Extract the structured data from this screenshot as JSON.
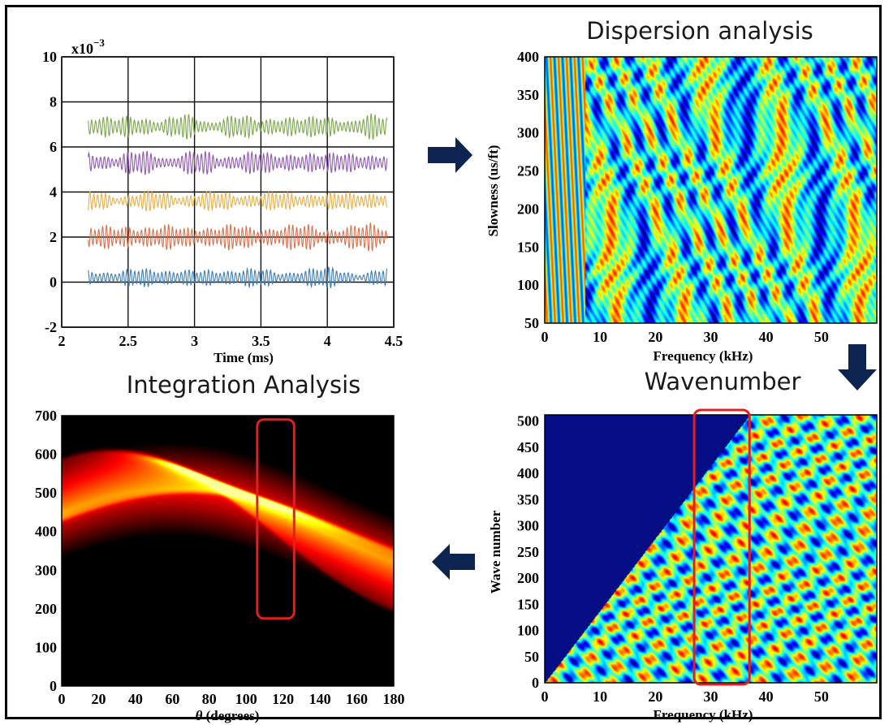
{
  "chart_data": [
    {
      "type": "line",
      "title": "",
      "xlabel": "Time  (ms)",
      "ylabel": "",
      "scale_label": "x10",
      "scale_exponent": "−3",
      "xlim": [
        2,
        4.5
      ],
      "ylim": [
        -2,
        10
      ],
      "xticks": [
        "2",
        "2.5",
        "3",
        "3.5",
        "4",
        "4.5"
      ],
      "yticks": [
        "-2",
        "0",
        "2",
        "4",
        "6",
        "8",
        "10"
      ],
      "grid": true,
      "x_range": [
        2.2,
        4.45
      ],
      "series": [
        {
          "offset": 0.2,
          "amplitude": 0.5,
          "color": "#3f7fb5"
        },
        {
          "offset": 2.0,
          "amplitude": 0.7,
          "color": "#d9734f"
        },
        {
          "offset": 3.6,
          "amplitude": 0.5,
          "color": "#e6b24a"
        },
        {
          "offset": 5.3,
          "amplitude": 0.6,
          "color": "#8f5ab0"
        },
        {
          "offset": 6.9,
          "amplitude": 0.6,
          "color": "#7da84e"
        }
      ]
    },
    {
      "type": "heatmap",
      "title": "Dispersion analysis",
      "xlabel": "Frequency (kHz)",
      "ylabel": "Slowness (us/ft)",
      "xlim": [
        0,
        60
      ],
      "ylim": [
        50,
        400
      ],
      "xticks": [
        "0",
        "10",
        "20",
        "30",
        "40",
        "50"
      ],
      "yticks": [
        "50",
        "100",
        "150",
        "200",
        "250",
        "300",
        "350",
        "400"
      ],
      "colormap": "jet"
    },
    {
      "type": "heatmap",
      "title": "Wavenumber",
      "xlabel": "Frequency (kHz)",
      "ylabel": "Wave number",
      "xlim": [
        0,
        60
      ],
      "ylim": [
        0,
        512
      ],
      "xticks": [
        "0",
        "10",
        "20",
        "30",
        "40",
        "50"
      ],
      "yticks": [
        "0",
        "50",
        "100",
        "150",
        "200",
        "250",
        "300",
        "350",
        "400",
        "450",
        "500"
      ],
      "colormap": "jet",
      "highlight": {
        "x": [
          27,
          37
        ],
        "y": [
          0,
          512
        ],
        "color": "#e02020"
      }
    },
    {
      "type": "heatmap",
      "title": "Integration Analysis",
      "xlabel": "θ (degrees)",
      "xlabel_symbol": "θ",
      "xlabel_rest": " (degrees)",
      "ylabel": "",
      "xlim": [
        0,
        180
      ],
      "ylim": [
        0,
        700
      ],
      "xticks": [
        "0",
        "20",
        "40",
        "60",
        "80",
        "100",
        "120",
        "140",
        "160",
        "180"
      ],
      "yticks": [
        "0",
        "100",
        "200",
        "300",
        "400",
        "500",
        "600",
        "700"
      ],
      "colormap": "hot",
      "highlight": {
        "x": [
          106,
          126
        ],
        "y": [
          175,
          690
        ],
        "color": "#e02020"
      }
    }
  ],
  "arrows": {
    "color": "#0d2450"
  }
}
